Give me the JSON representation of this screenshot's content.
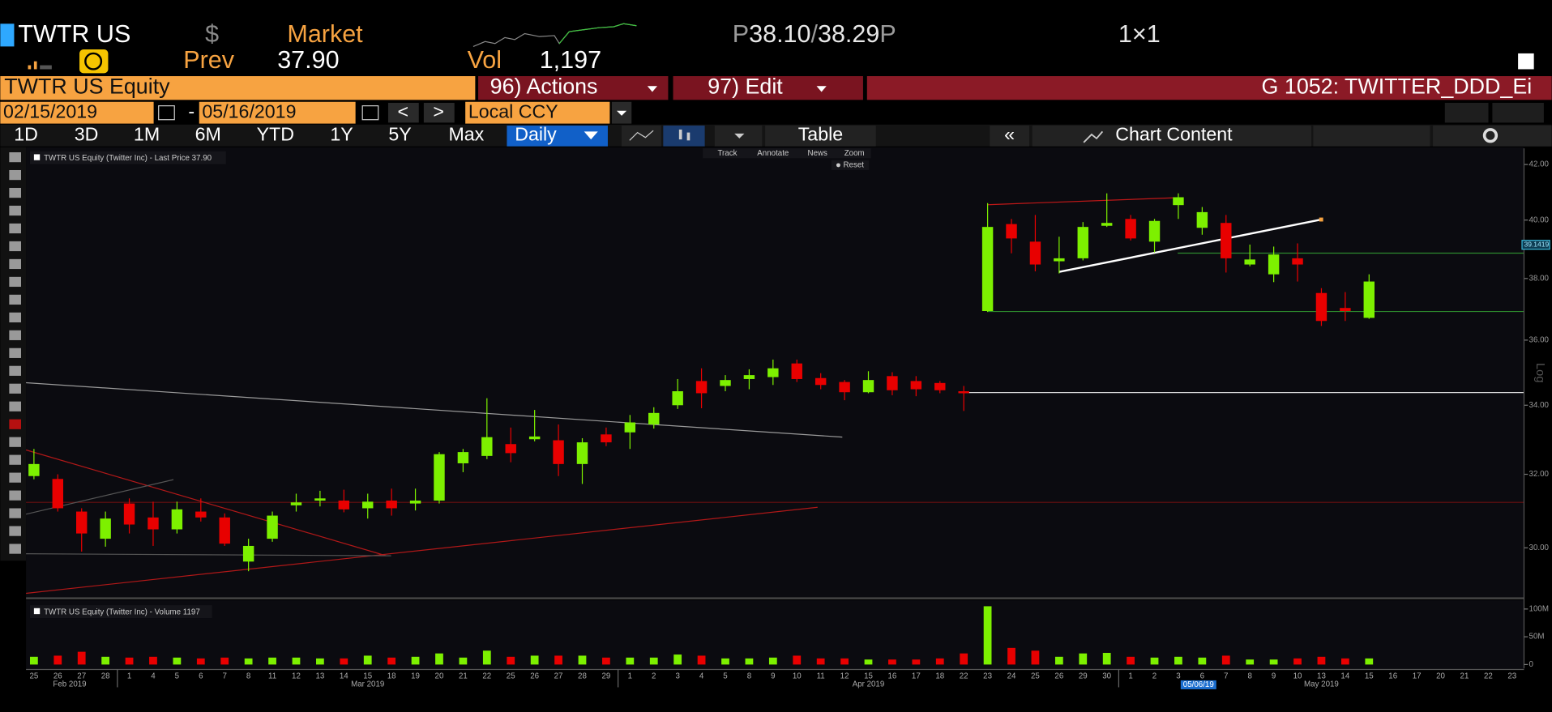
{
  "header": {
    "ticker": "TWTR US",
    "currency": "$",
    "source": "Market",
    "bid_prefix": "P",
    "bid": "38.10",
    "separator": "/",
    "ask": "38.29",
    "ask_suffix": "P",
    "size": "1×1",
    "prev_label": "Prev",
    "prev": "37.90",
    "vol_label": "Vol",
    "vol": "1,197"
  },
  "toolbar": {
    "security": "TWTR US Equity",
    "actions": "96) Actions",
    "edit": "97) Edit",
    "page": "G 1052: TWITTER_DDD_Ei",
    "start_date": "02/15/2019",
    "dash": "-",
    "end_date": "05/16/2019",
    "prev": "<",
    "next": ">",
    "currency": "Local CCY"
  },
  "tabs": [
    "1D",
    "3D",
    "1M",
    "6M",
    "YTD",
    "1Y",
    "5Y",
    "Max"
  ],
  "frequency": "Daily",
  "table": "Table",
  "back": "«",
  "chart_content": "Chart Content",
  "chart_data": {
    "type": "candlestick",
    "legend": "TWTR US Equity (Twitter Inc) - Last Price 37.90",
    "tools": [
      "Track",
      "Annotate",
      "News",
      "Zoom"
    ],
    "reset": "Reset",
    "scale_label": "Log",
    "log": true,
    "volume_legend": "TWTR US Equity (Twitter Inc) - Volume 1197",
    "crosshair_date": "05/06/19",
    "crosshair_price": 39.1419,
    "month_labels": [
      "Feb 2019",
      "Mar 2019",
      "Apr 2019",
      "May 2019"
    ],
    "categories": [
      "25",
      "26",
      "27",
      "28",
      "1",
      "4",
      "5",
      "6",
      "7",
      "8",
      "11",
      "12",
      "13",
      "14",
      "15",
      "18",
      "19",
      "20",
      "21",
      "22",
      "25",
      "26",
      "27",
      "28",
      "29",
      "1",
      "2",
      "3",
      "4",
      "5",
      "8",
      "9",
      "10",
      "11",
      "12",
      "15",
      "16",
      "17",
      "18",
      "22",
      "23",
      "24",
      "25",
      "26",
      "29",
      "30",
      "1",
      "2",
      "3",
      "6",
      "7",
      "8",
      "9",
      "10",
      "13",
      "14",
      "15",
      "16",
      "17",
      "20",
      "21",
      "22",
      "23"
    ],
    "open": [
      31.95,
      31.87,
      30.97,
      30.24,
      31.19,
      30.81,
      30.49,
      30.97,
      30.81,
      29.64,
      30.24,
      31.14,
      31.27,
      31.27,
      31.06,
      31.27,
      31.19,
      31.27,
      32.31,
      32.52,
      32.86,
      33.0,
      32.97,
      32.29,
      33.14,
      33.2,
      33.43,
      34.0,
      34.73,
      34.58,
      34.79,
      34.85,
      35.27,
      34.82,
      34.7,
      34.39,
      34.88,
      34.73,
      34.67,
      34.42,
      36.93,
      39.86,
      39.25,
      38.58,
      38.68,
      39.8,
      40.04,
      39.25,
      40.53,
      39.73,
      39.9,
      38.47,
      38.14,
      38.68,
      37.52,
      37.03,
      36.71,
      null,
      null,
      null,
      null,
      null,
      null
    ],
    "high": [
      32.72,
      32.0,
      31.06,
      30.97,
      31.33,
      31.24,
      31.24,
      31.33,
      30.92,
      30.24,
      30.97,
      31.46,
      31.54,
      31.57,
      31.46,
      31.6,
      31.6,
      32.63,
      32.72,
      34.21,
      33.34,
      33.86,
      33.43,
      33.03,
      33.34,
      33.71,
      33.94,
      34.79,
      35.12,
      34.91,
      35.09,
      35.39,
      35.39,
      34.97,
      34.76,
      35.03,
      35.0,
      34.88,
      34.73,
      34.58,
      40.6,
      40.04,
      40.18,
      39.42,
      39.93,
      40.95,
      40.18,
      40.04,
      40.95,
      40.46,
      40.18,
      39.15,
      39.08,
      39.19,
      37.68,
      37.55,
      38.14,
      null,
      null,
      null,
      null,
      null,
      null
    ],
    "low": [
      31.86,
      30.97,
      29.9,
      30.03,
      30.38,
      30.05,
      30.38,
      30.7,
      30.05,
      29.39,
      30.16,
      30.97,
      31.11,
      30.95,
      30.78,
      30.86,
      31.0,
      31.19,
      32.06,
      32.43,
      32.34,
      32.94,
      31.95,
      31.73,
      32.8,
      32.72,
      33.31,
      33.89,
      33.91,
      34.42,
      34.48,
      34.61,
      34.7,
      34.48,
      34.15,
      34.36,
      34.3,
      34.27,
      34.36,
      33.83,
      36.9,
      38.85,
      38.24,
      38.17,
      38.61,
      39.76,
      39.29,
      38.88,
      40.04,
      39.49,
      38.2,
      38.41,
      37.88,
      37.9,
      36.45,
      36.61,
      36.68,
      null,
      null,
      null,
      null,
      null,
      null
    ],
    "close": [
      32.29,
      31.06,
      30.38,
      30.78,
      30.62,
      30.49,
      31.03,
      30.81,
      30.11,
      30.05,
      30.86,
      31.22,
      31.33,
      31.03,
      31.24,
      31.06,
      31.27,
      32.57,
      32.63,
      33.06,
      32.6,
      33.08,
      32.29,
      32.91,
      32.91,
      33.49,
      33.77,
      34.42,
      34.36,
      34.76,
      34.91,
      35.12,
      34.79,
      34.61,
      34.39,
      34.76,
      34.45,
      34.48,
      34.45,
      34.36,
      39.76,
      39.36,
      38.47,
      38.68,
      39.76,
      39.9,
      39.36,
      39.97,
      40.81,
      40.28,
      38.68,
      38.64,
      38.81,
      38.47,
      36.61,
      36.93,
      37.9,
      null,
      null,
      null,
      null,
      null,
      null
    ],
    "volume": [
      14000000,
      16000000,
      23000000,
      14000000,
      12500000,
      14000000,
      12500000,
      11000000,
      12500000,
      11000000,
      12500000,
      12500000,
      11000000,
      11000000,
      16000000,
      12500000,
      14000000,
      20000000,
      12500000,
      25000000,
      14000000,
      16000000,
      16000000,
      16000000,
      12500000,
      12500000,
      12500000,
      18000000,
      16000000,
      11000000,
      11000000,
      12500000,
      16000000,
      11000000,
      11000000,
      9000000,
      9000000,
      9000000,
      11000000,
      20000000,
      105000000,
      30000000,
      25000000,
      14000000,
      20000000,
      21000000,
      14000000,
      12500000,
      14000000,
      12500000,
      16000000,
      9000000,
      9000000,
      11000000,
      14000000,
      11000000,
      11000000,
      null,
      null,
      null,
      null,
      null,
      null
    ],
    "up_color": "#7df000",
    "down_color": "#e80000",
    "ylim": [
      28.75,
      42.6
    ],
    "yticks": [
      {
        "value": 42,
        "label": "42.00"
      },
      {
        "value": 40,
        "label": "40.00"
      },
      {
        "value": 38,
        "label": "38.00"
      },
      {
        "value": 36,
        "label": "36.00"
      },
      {
        "value": 34,
        "label": "34.00"
      },
      {
        "value": 32,
        "label": "32.00"
      },
      {
        "value": 30,
        "label": "30.00"
      }
    ],
    "vlim": [
      0,
      114000000
    ],
    "vticks": [
      {
        "value": 100000000,
        "label": "100M"
      },
      {
        "value": 50000000,
        "label": "50M"
      },
      0
    ]
  }
}
